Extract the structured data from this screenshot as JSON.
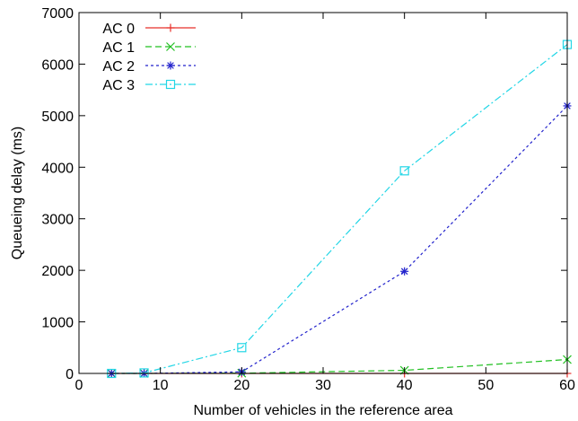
{
  "chart_data": {
    "type": "line",
    "title": "",
    "xlabel": "Number of vehicles in the reference area",
    "ylabel": "Queueing delay (ms)",
    "xlim": [
      0,
      60
    ],
    "ylim": [
      0,
      7000
    ],
    "xticks": [
      0,
      10,
      20,
      30,
      40,
      50,
      60
    ],
    "yticks": [
      0,
      1000,
      2000,
      3000,
      4000,
      5000,
      6000,
      7000
    ],
    "xtick_labels": [
      "0",
      "10",
      "20",
      "30",
      "40",
      "50",
      "60"
    ],
    "ytick_labels": [
      "0",
      "1000",
      "2000",
      "3000",
      "4000",
      "5000",
      "6000",
      "7000"
    ],
    "grid": false,
    "legend_position": "top-left",
    "x": [
      4,
      8,
      20,
      40,
      60
    ],
    "series": [
      {
        "name": "AC 0",
        "color": "#e8302a",
        "marker": "plus",
        "dash": "solid",
        "values": [
          0,
          0,
          0,
          0,
          0
        ]
      },
      {
        "name": "AC 1",
        "color": "#22c022",
        "marker": "x",
        "dash": "dashed",
        "values": [
          0,
          0,
          5,
          60,
          270
        ]
      },
      {
        "name": "AC 2",
        "color": "#2222cc",
        "marker": "star",
        "dash": "dotted",
        "values": [
          0,
          0,
          30,
          1980,
          5190
        ]
      },
      {
        "name": "AC 3",
        "color": "#22d6e6",
        "marker": "square",
        "dash": "dashdot",
        "values": [
          0,
          10,
          500,
          3930,
          6380
        ]
      }
    ]
  }
}
